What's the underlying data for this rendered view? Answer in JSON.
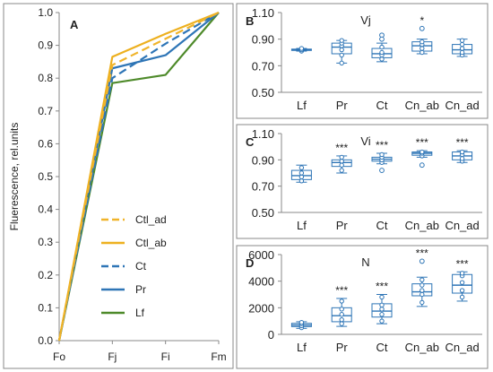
{
  "chart_data": [
    {
      "type": "line",
      "panel_label": "A",
      "ylabel": "Fluerescence, rel.units",
      "categories": [
        "Fo",
        "Fj",
        "Fi",
        "Fm"
      ],
      "ylim": [
        0,
        1.0
      ],
      "yticks": [
        "0.0",
        "0.1",
        "0.2",
        "0.3",
        "0.4",
        "0.5",
        "0.6",
        "0.7",
        "0.8",
        "0.9",
        "1.0"
      ],
      "legend_position": "center-right",
      "series": [
        {
          "name": "Ctl_ad",
          "color": "#F0B42A",
          "dash": true,
          "values": [
            0.0,
            0.84,
            0.92,
            1.0
          ]
        },
        {
          "name": "Ctl_ab",
          "color": "#EDB01F",
          "dash": false,
          "values": [
            0.0,
            0.865,
            0.935,
            1.0
          ]
        },
        {
          "name": "Ct",
          "color": "#2E75B6",
          "dash": true,
          "values": [
            0.0,
            0.8,
            0.905,
            1.0
          ]
        },
        {
          "name": "Pr",
          "color": "#2E75B6",
          "dash": false,
          "values": [
            0.0,
            0.83,
            0.87,
            1.0
          ]
        },
        {
          "name": "Lf",
          "color": "#4E8A2A",
          "dash": false,
          "values": [
            0.0,
            0.785,
            0.81,
            1.0
          ]
        }
      ]
    },
    {
      "type": "box",
      "panel_label": "B",
      "title": "Vj",
      "categories": [
        "Lf",
        "Pr",
        "Ct",
        "Cn_ab",
        "Cn_ad"
      ],
      "ylim": [
        0.5,
        1.1
      ],
      "yticks": [
        "1.10",
        "0.90",
        "0.70",
        "0.50"
      ],
      "series": [
        {
          "name": "Lf",
          "whisker_low": 0.81,
          "q1": 0.815,
          "median": 0.82,
          "q3": 0.825,
          "whisker_high": 0.83,
          "outliers": [],
          "points": [
            0.81,
            0.82,
            0.83
          ],
          "sig": ""
        },
        {
          "name": "Pr",
          "whisker_low": 0.72,
          "q1": 0.79,
          "median": 0.84,
          "q3": 0.87,
          "whisker_high": 0.89,
          "outliers": [],
          "points": [
            0.72,
            0.78,
            0.82,
            0.85,
            0.87,
            0.89
          ],
          "sig": ""
        },
        {
          "name": "Ct",
          "whisker_low": 0.73,
          "q1": 0.76,
          "median": 0.79,
          "q3": 0.83,
          "whisker_high": 0.87,
          "outliers": [
            0.93,
            0.9
          ],
          "points": [
            0.75,
            0.78,
            0.8,
            0.84
          ],
          "sig": ""
        },
        {
          "name": "Cn_ab",
          "whisker_low": 0.79,
          "q1": 0.81,
          "median": 0.85,
          "q3": 0.88,
          "whisker_high": 0.9,
          "outliers": [
            0.98
          ],
          "points": [
            0.8,
            0.83,
            0.86,
            0.88
          ],
          "sig": "*"
        },
        {
          "name": "Cn_ad",
          "whisker_low": 0.77,
          "q1": 0.79,
          "median": 0.82,
          "q3": 0.86,
          "whisker_high": 0.9,
          "outliers": [],
          "points": [
            0.78,
            0.8,
            0.83,
            0.86,
            0.89
          ],
          "sig": ""
        }
      ]
    },
    {
      "type": "box",
      "panel_label": "C",
      "title": "Vi",
      "categories": [
        "Lf",
        "Pr",
        "Ct",
        "Cn_ab",
        "Cn_ad"
      ],
      "ylim": [
        0.5,
        1.1
      ],
      "yticks": [
        "1.10",
        "0.90",
        "0.70",
        "0.50"
      ],
      "series": [
        {
          "name": "Lf",
          "whisker_low": 0.73,
          "q1": 0.75,
          "median": 0.78,
          "q3": 0.82,
          "whisker_high": 0.86,
          "outliers": [],
          "points": [
            0.74,
            0.77,
            0.8,
            0.84
          ],
          "sig": ""
        },
        {
          "name": "Pr",
          "whisker_low": 0.8,
          "q1": 0.85,
          "median": 0.88,
          "q3": 0.9,
          "whisker_high": 0.93,
          "outliers": [],
          "points": [
            0.82,
            0.86,
            0.89,
            0.92
          ],
          "sig": "***"
        },
        {
          "name": "Ct",
          "whisker_low": 0.87,
          "q1": 0.89,
          "median": 0.905,
          "q3": 0.92,
          "whisker_high": 0.95,
          "outliers": [
            0.82
          ],
          "points": [
            0.88,
            0.9,
            0.92,
            0.94
          ],
          "sig": "***"
        },
        {
          "name": "Cn_ab",
          "whisker_low": 0.92,
          "q1": 0.935,
          "median": 0.95,
          "q3": 0.96,
          "whisker_high": 0.97,
          "outliers": [
            0.86
          ],
          "points": [
            0.93,
            0.95,
            0.96
          ],
          "sig": "***"
        },
        {
          "name": "Cn_ad",
          "whisker_low": 0.88,
          "q1": 0.9,
          "median": 0.93,
          "q3": 0.96,
          "whisker_high": 0.97,
          "outliers": [],
          "points": [
            0.89,
            0.91,
            0.94,
            0.96
          ],
          "sig": "***"
        }
      ]
    },
    {
      "type": "box",
      "panel_label": "D",
      "title": "N",
      "categories": [
        "Lf",
        "Pr",
        "Ct",
        "Cn_ab",
        "Cn_ad"
      ],
      "ylim": [
        0,
        6000
      ],
      "yticks": [
        "6000",
        "4000",
        "2000",
        "0"
      ],
      "series": [
        {
          "name": "Lf",
          "whisker_low": 450,
          "q1": 580,
          "median": 700,
          "q3": 830,
          "whisker_high": 950,
          "outliers": [],
          "points": [
            500,
            650,
            800,
            900
          ],
          "sig": ""
        },
        {
          "name": "Pr",
          "whisker_low": 600,
          "q1": 950,
          "median": 1400,
          "q3": 2000,
          "whisker_high": 2700,
          "outliers": [],
          "points": [
            800,
            1100,
            1500,
            1900,
            2500
          ],
          "sig": "***"
        },
        {
          "name": "Ct",
          "whisker_low": 800,
          "q1": 1300,
          "median": 1750,
          "q3": 2300,
          "whisker_high": 3000,
          "outliers": [],
          "points": [
            1000,
            1500,
            1900,
            2200,
            2800
          ],
          "sig": "***"
        },
        {
          "name": "Cn_ab",
          "whisker_low": 2100,
          "q1": 2900,
          "median": 3200,
          "q3": 3800,
          "whisker_high": 4300,
          "outliers": [
            5500
          ],
          "points": [
            2400,
            3000,
            3300,
            3700,
            4100
          ],
          "sig": "***"
        },
        {
          "name": "Cn_ad",
          "whisker_low": 2500,
          "q1": 3100,
          "median": 3700,
          "q3": 4500,
          "whisker_high": 4700,
          "outliers": [],
          "points": [
            2800,
            3300,
            3900,
            4400,
            4600
          ],
          "sig": "***"
        }
      ]
    }
  ]
}
